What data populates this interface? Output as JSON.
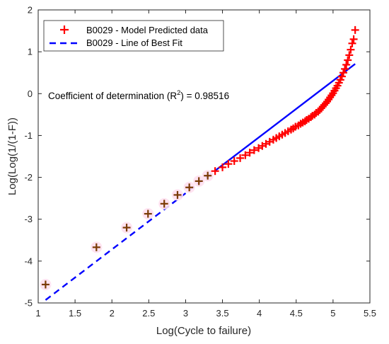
{
  "chart_data": {
    "type": "scatter",
    "xlabel": "Log(Cycle to failure)",
    "ylabel": "Log(Log(1/(1-F))",
    "xlim": [
      1,
      5.5
    ],
    "ylim": [
      -5,
      2
    ],
    "x_ticks": [
      "1",
      "1.5",
      "2",
      "2.5",
      "3",
      "3.5",
      "4",
      "4.5",
      "5",
      "5.5"
    ],
    "y_ticks": [
      "-5",
      "-4",
      "-3",
      "-2",
      "-1",
      "0",
      "1",
      "2"
    ],
    "grid": false,
    "legend_position": "top-left",
    "series": [
      {
        "name": "B0029 - Model Predicted data",
        "style": "plus-markers",
        "color": "#ff0000",
        "x": [
          1.1,
          1.79,
          2.2,
          2.49,
          2.71,
          2.89,
          3.05,
          3.18,
          3.3,
          3.4,
          3.5,
          3.58,
          3.66,
          3.74,
          3.81,
          3.87,
          3.93,
          3.99,
          4.04,
          4.09,
          4.14,
          4.19,
          4.23,
          4.27,
          4.31,
          4.35,
          4.39,
          4.43,
          4.46,
          4.49,
          4.53,
          4.56,
          4.59,
          4.62,
          4.64,
          4.67,
          4.7,
          4.72,
          4.75,
          4.77,
          4.8,
          4.82,
          4.84,
          4.86,
          4.88,
          4.9,
          4.92,
          4.94,
          4.96,
          4.98,
          5.0,
          5.02,
          5.04,
          5.06,
          5.08,
          5.1,
          5.12,
          5.14,
          5.16,
          5.18,
          5.2,
          5.22,
          5.24,
          5.26,
          5.28,
          5.3
        ],
        "y": [
          -4.56,
          -3.67,
          -3.2,
          -2.87,
          -2.63,
          -2.42,
          -2.24,
          -2.09,
          -1.96,
          -1.85,
          -1.76,
          -1.68,
          -1.61,
          -1.54,
          -1.47,
          -1.41,
          -1.35,
          -1.3,
          -1.25,
          -1.2,
          -1.15,
          -1.1,
          -1.06,
          -1.02,
          -0.98,
          -0.94,
          -0.9,
          -0.86,
          -0.83,
          -0.79,
          -0.76,
          -0.72,
          -0.69,
          -0.66,
          -0.63,
          -0.6,
          -0.56,
          -0.53,
          -0.5,
          -0.46,
          -0.43,
          -0.39,
          -0.35,
          -0.31,
          -0.27,
          -0.23,
          -0.19,
          -0.14,
          -0.09,
          -0.04,
          0.01,
          0.07,
          0.13,
          0.19,
          0.26,
          0.33,
          0.41,
          0.5,
          0.59,
          0.69,
          0.8,
          0.92,
          1.05,
          1.2,
          1.3,
          1.52
        ]
      },
      {
        "name": "B0029 - Line of Best Fit",
        "style": "line",
        "color": "#0000ff",
        "x": [
          1.1,
          5.3
        ],
        "y": [
          -4.93,
          0.71
        ],
        "dashed_until_x": 3.42
      }
    ],
    "annotation": {
      "text": "Coefficient of determination (R",
      "superscript": "2",
      "suffix": ") =  0.98516"
    }
  }
}
